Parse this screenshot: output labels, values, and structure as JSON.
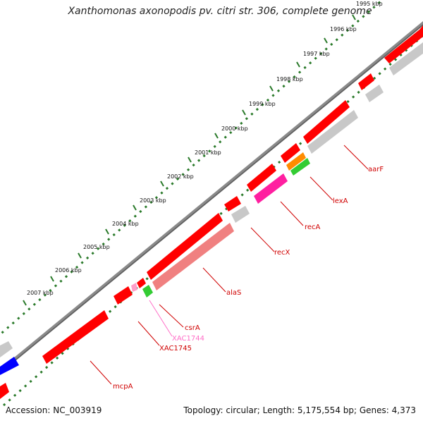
{
  "title": "Xanthomonas axonopodis pv. citri str. 306, complete genome",
  "footer": {
    "accession": "Accession: NC_003919",
    "summary": "Topology: circular; Length: 5,175,554 bp; Genes: 4,373"
  },
  "colors": {
    "backbone": "#8a8a8a",
    "tick": "#2a7a2a",
    "gene_red": "#ff0000",
    "gene_gray": "#c8c8c8",
    "gene_pink": "#f08080",
    "gene_magenta": "#ff1fa0",
    "gene_green": "#33cc33",
    "gene_orange": "#ff8c00",
    "gene_blue": "#0000ff",
    "label_red": "#d00000",
    "label_pink": "#ff6ec7"
  },
  "scale_ticks": [
    {
      "label": "1995 kbp"
    },
    {
      "label": "1996 kbp"
    },
    {
      "label": "1997 kbp"
    },
    {
      "label": "1998 kbp"
    },
    {
      "label": "1999 kbp"
    },
    {
      "label": "2000 kbp"
    },
    {
      "label": "2001 kbp"
    },
    {
      "label": "2002 kbp"
    },
    {
      "label": "2003 kbp"
    },
    {
      "label": "2004 kbp"
    },
    {
      "label": "2005 kbp"
    },
    {
      "label": "2006 kbp"
    },
    {
      "label": "2007 kbp"
    }
  ],
  "gene_labels": [
    {
      "name": "aarF",
      "color": "red"
    },
    {
      "name": "lexA",
      "color": "red"
    },
    {
      "name": "recA",
      "color": "red"
    },
    {
      "name": "recX",
      "color": "red"
    },
    {
      "name": "alaS",
      "color": "red"
    },
    {
      "name": "csrA",
      "color": "red"
    },
    {
      "name": "XAC1744",
      "color": "pink"
    },
    {
      "name": "XAC1745",
      "color": "red"
    },
    {
      "name": "mcpA",
      "color": "red"
    }
  ]
}
